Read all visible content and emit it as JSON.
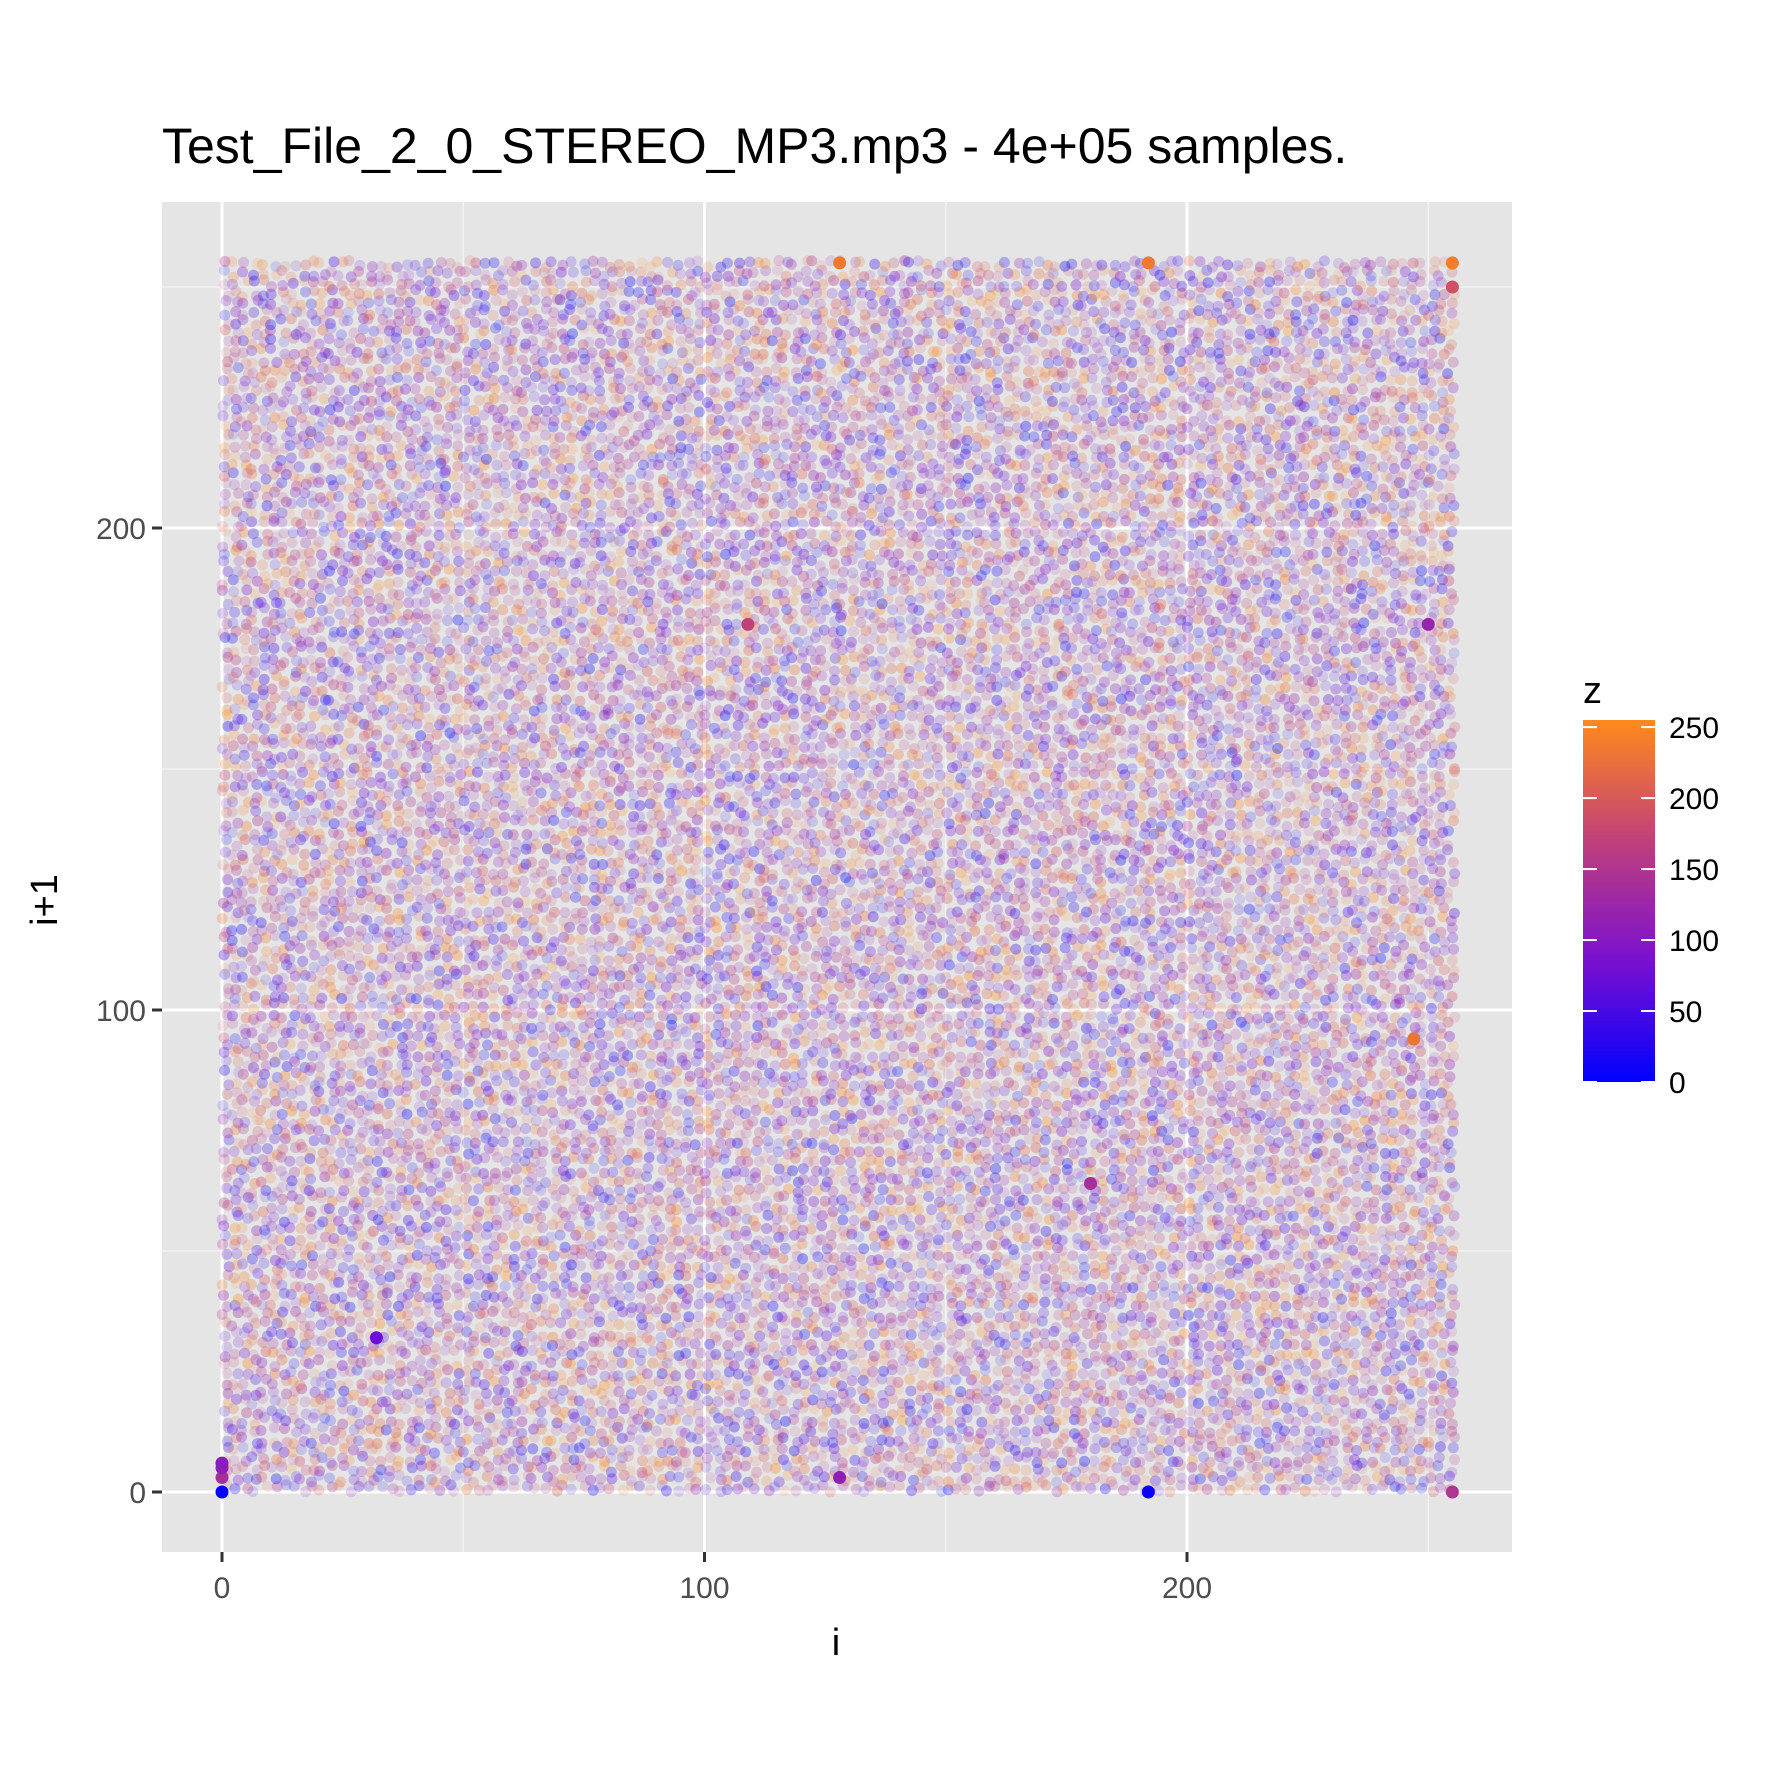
{
  "chart_data": {
    "type": "scatter",
    "title": "Test_File_2_0_STEREO_MP3.mp3 - 4e+05 samples.",
    "xlabel": "i",
    "ylabel": "i+1",
    "xlim": [
      -12.5,
      267.5
    ],
    "ylim": [
      -12.5,
      267.5
    ],
    "x_ticks": [
      0,
      100,
      200
    ],
    "y_ticks": [
      0,
      100,
      200
    ],
    "x_minor_ticks": [
      50,
      150,
      250
    ],
    "y_minor_ticks": [
      50,
      150,
      250
    ],
    "domain": [
      0,
      255
    ],
    "grid": true,
    "background": "#e5e5e5",
    "legend": {
      "title": "z",
      "position": "right",
      "ticks": [
        0,
        50,
        100,
        150,
        200,
        250
      ],
      "range": [
        0,
        255
      ],
      "colors": [
        "#0000ff",
        "#7a10d0",
        "#c0407a",
        "#ff8a1a"
      ]
    },
    "highlight_points": [
      {
        "x": 0,
        "y": 0,
        "z": 2
      },
      {
        "x": 0,
        "y": 3,
        "z": 140
      },
      {
        "x": 0,
        "y": 5,
        "z": 110
      },
      {
        "x": 0,
        "y": 6,
        "z": 105
      },
      {
        "x": 32,
        "y": 32,
        "z": 75
      },
      {
        "x": 128,
        "y": 3,
        "z": 110
      },
      {
        "x": 180,
        "y": 64,
        "z": 140
      },
      {
        "x": 192,
        "y": 0,
        "z": 8
      },
      {
        "x": 250,
        "y": 180,
        "z": 120
      },
      {
        "x": 255,
        "y": 255,
        "z": 240
      },
      {
        "x": 255,
        "y": 250,
        "z": 190
      },
      {
        "x": 255,
        "y": 0,
        "z": 150
      },
      {
        "x": 128,
        "y": 255,
        "z": 235
      },
      {
        "x": 192,
        "y": 255,
        "z": 235
      },
      {
        "x": 247,
        "y": 94,
        "z": 230
      },
      {
        "x": 109,
        "y": 180,
        "z": 170
      }
    ]
  }
}
